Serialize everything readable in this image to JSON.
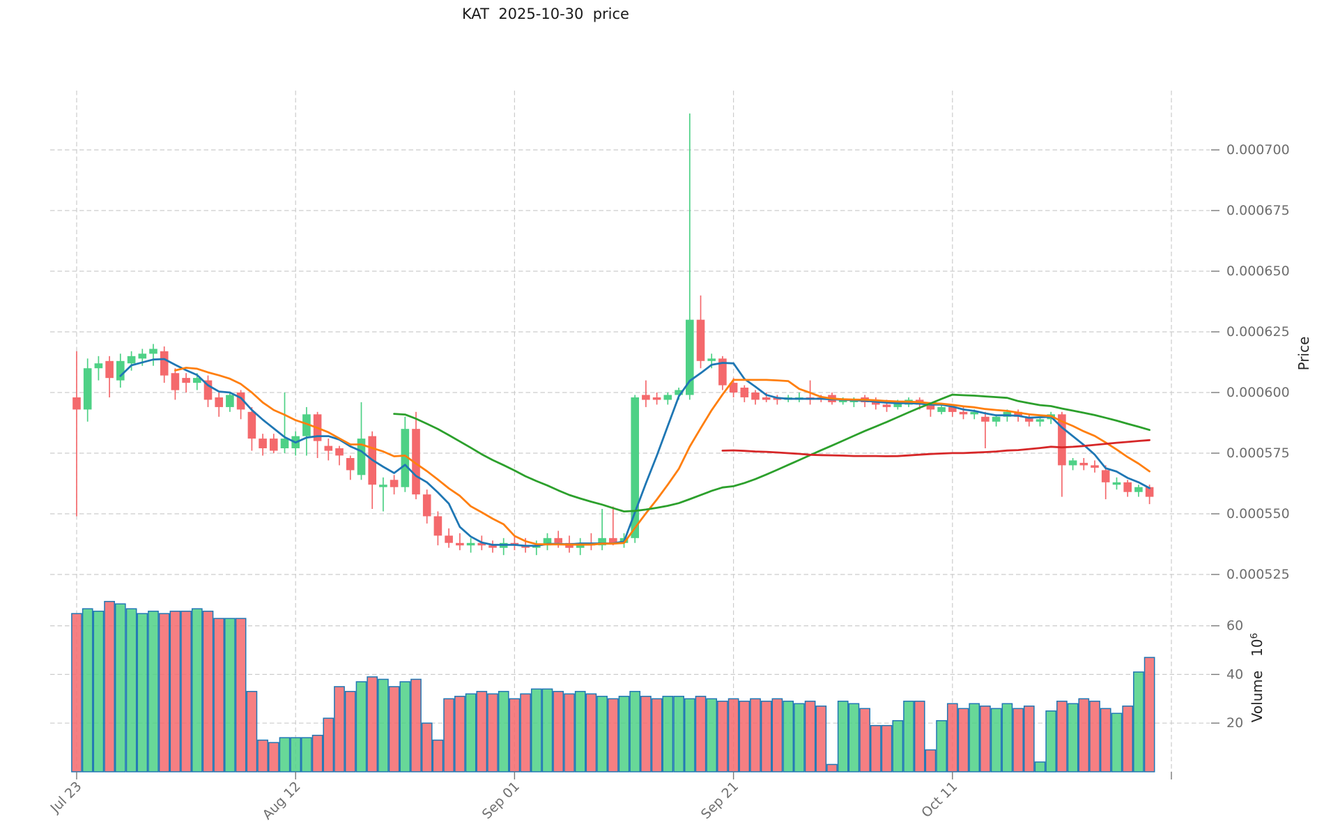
{
  "title": "KAT  2025-10-30  price",
  "axes": {
    "price_label": "Price",
    "volume_label": "Volume",
    "volume_scale_base": "10",
    "volume_scale_exp": "6",
    "price_ticks": [
      {
        "label": "0.000700",
        "value": 700
      },
      {
        "label": "0.000675",
        "value": 675
      },
      {
        "label": "0.000650",
        "value": 650
      },
      {
        "label": "0.000625",
        "value": 625
      },
      {
        "label": "0.000600",
        "value": 600
      },
      {
        "label": "0.000575",
        "value": 575
      },
      {
        "label": "0.000550",
        "value": 550
      },
      {
        "label": "0.000525",
        "value": 525
      }
    ],
    "volume_ticks": [
      {
        "label": "60",
        "value": 60
      },
      {
        "label": "40",
        "value": 40
      },
      {
        "label": "20",
        "value": 20
      }
    ],
    "date_ticks": [
      {
        "label": "Jul 23",
        "day": 0
      },
      {
        "label": "Aug 12",
        "day": 20
      },
      {
        "label": "Sep 01",
        "day": 40
      },
      {
        "label": "Sep 21",
        "day": 60
      },
      {
        "label": "Oct 11",
        "day": 80
      },
      {
        "label": "",
        "day": 100
      }
    ]
  },
  "colors": {
    "up": "#4ed186",
    "down": "#f4696c",
    "volume_edge": "#2077b4",
    "grid": "#cccccc",
    "tick_text": "#6e6e6e",
    "label_text": "#262626",
    "background": "#ffffff"
  },
  "chart_data": {
    "type": "candlestick+volume",
    "title": "KAT  2025-10-30  price",
    "start_date": "2025-07-23",
    "price_unit": "1e-6",
    "volume_unit": "1e6",
    "ylim_price": [
      520,
      720
    ],
    "ylim_volume": [
      0,
      72
    ],
    "grid": true,
    "legend": false,
    "ma_lines": [
      {
        "name": "SMA5",
        "period": 5,
        "color": "#1f77b4"
      },
      {
        "name": "SMA10",
        "period": 10,
        "color": "#ff7f0e"
      },
      {
        "name": "SMA30",
        "period": 30,
        "color": "#2ca02c"
      },
      {
        "name": "SMA60",
        "period": 60,
        "color": "#d62728"
      }
    ],
    "ohlcv_columns": [
      "open",
      "high",
      "low",
      "close",
      "volume"
    ],
    "ohlcv": [
      [
        598,
        617,
        549,
        593,
        65
      ],
      [
        593,
        614,
        588,
        610,
        67
      ],
      [
        610,
        615,
        605,
        612,
        66
      ],
      [
        613,
        615,
        598,
        606,
        70
      ],
      [
        605,
        616,
        602,
        613,
        69
      ],
      [
        612,
        617,
        609,
        615,
        67
      ],
      [
        614,
        618,
        611,
        616,
        65
      ],
      [
        616,
        620,
        611,
        618,
        66
      ],
      [
        617,
        619,
        604,
        607,
        65
      ],
      [
        608,
        610,
        597,
        601,
        66
      ],
      [
        606,
        608,
        600,
        604,
        66
      ],
      [
        604,
        608,
        601,
        606,
        67
      ],
      [
        605,
        607,
        594,
        597,
        66
      ],
      [
        598,
        600,
        590,
        594,
        63
      ],
      [
        594,
        600,
        592,
        599,
        63
      ],
      [
        600,
        601,
        589,
        593,
        63
      ],
      [
        592,
        594,
        576,
        581,
        33
      ],
      [
        581,
        583,
        574,
        577,
        13
      ],
      [
        581,
        583,
        575,
        576,
        12
      ],
      [
        577,
        600,
        575,
        581,
        14
      ],
      [
        577,
        584,
        574,
        582,
        14
      ],
      [
        582,
        594,
        574,
        591,
        14
      ],
      [
        591,
        592,
        573,
        580,
        15
      ],
      [
        578,
        581,
        572,
        576,
        22
      ],
      [
        577,
        578,
        570,
        574,
        35
      ],
      [
        573,
        574,
        564,
        568,
        33
      ],
      [
        566,
        596,
        564,
        581,
        37
      ],
      [
        582,
        584,
        552,
        562,
        39
      ],
      [
        561,
        565,
        551,
        562,
        38
      ],
      [
        564,
        566,
        558,
        561,
        35
      ],
      [
        561,
        590,
        559,
        585,
        37
      ],
      [
        585,
        592,
        556,
        558,
        38
      ],
      [
        558,
        560,
        546,
        549,
        20
      ],
      [
        549,
        551,
        537,
        541,
        13
      ],
      [
        541,
        544,
        536,
        538,
        30
      ],
      [
        538,
        542,
        535,
        537,
        31
      ],
      [
        537,
        540,
        534,
        538,
        32
      ],
      [
        538,
        541,
        535,
        537,
        33
      ],
      [
        537,
        539,
        534,
        536,
        32
      ],
      [
        536,
        540,
        533,
        538,
        33
      ],
      [
        538,
        541,
        535,
        537,
        30
      ],
      [
        537,
        540,
        534,
        536,
        32
      ],
      [
        536,
        539,
        533,
        537,
        34
      ],
      [
        537,
        542,
        535,
        540,
        34
      ],
      [
        540,
        543,
        536,
        538,
        33
      ],
      [
        538,
        541,
        534,
        536,
        32
      ],
      [
        536,
        540,
        533,
        538,
        33
      ],
      [
        538,
        542,
        535,
        537,
        32
      ],
      [
        537,
        552,
        535,
        540,
        31
      ],
      [
        540,
        553,
        537,
        538,
        30
      ],
      [
        538,
        542,
        536,
        540,
        31
      ],
      [
        540,
        599,
        538,
        598,
        33
      ],
      [
        599,
        605,
        594,
        597,
        31
      ],
      [
        598,
        600,
        595,
        597,
        30
      ],
      [
        597,
        600,
        595,
        599,
        31
      ],
      [
        599,
        602,
        597,
        601,
        31
      ],
      [
        599,
        715,
        597,
        630,
        30
      ],
      [
        630,
        640,
        610,
        613,
        31
      ],
      [
        613,
        616,
        610,
        614,
        30
      ],
      [
        614,
        615,
        601,
        603,
        29
      ],
      [
        604,
        606,
        598,
        600,
        30
      ],
      [
        602,
        603,
        596,
        598,
        29
      ],
      [
        600,
        601,
        595,
        597,
        30
      ],
      [
        598,
        600,
        596,
        597,
        29
      ],
      [
        598,
        599,
        595,
        597,
        30
      ],
      [
        597,
        599,
        596,
        598,
        29
      ],
      [
        597,
        600,
        596,
        598,
        28
      ],
      [
        598,
        605,
        595,
        597,
        29
      ],
      [
        598,
        599,
        596,
        597,
        27
      ],
      [
        599,
        600,
        595,
        596,
        3
      ],
      [
        596,
        598,
        595,
        597,
        29
      ],
      [
        596,
        598,
        594,
        597,
        28
      ],
      [
        598,
        599,
        594,
        596,
        26
      ],
      [
        597,
        598,
        593,
        595,
        19
      ],
      [
        595,
        597,
        592,
        594,
        19
      ],
      [
        594,
        597,
        593,
        596,
        21
      ],
      [
        595,
        598,
        594,
        597,
        29
      ],
      [
        597,
        598,
        593,
        595,
        29
      ],
      [
        595,
        596,
        590,
        593,
        9
      ],
      [
        592,
        595,
        591,
        594,
        21
      ],
      [
        594,
        595,
        590,
        592,
        28
      ],
      [
        592,
        594,
        589,
        591,
        26
      ],
      [
        591,
        593,
        589,
        592,
        28
      ],
      [
        590,
        592,
        577,
        588,
        27
      ],
      [
        588,
        591,
        586,
        590,
        26
      ],
      [
        590,
        593,
        588,
        592,
        28
      ],
      [
        592,
        593,
        588,
        590,
        26
      ],
      [
        590,
        591,
        586,
        588,
        27
      ],
      [
        588,
        590,
        586,
        589,
        4
      ],
      [
        589,
        592,
        587,
        591,
        25
      ],
      [
        591,
        592,
        557,
        570,
        29
      ],
      [
        570,
        573,
        568,
        572,
        28
      ],
      [
        571,
        573,
        568,
        570,
        30
      ],
      [
        570,
        572,
        567,
        569,
        29
      ],
      [
        568,
        570,
        556,
        563,
        26
      ],
      [
        562,
        565,
        560,
        563,
        24
      ],
      [
        563,
        564,
        557,
        559,
        27
      ],
      [
        559,
        562,
        557,
        561,
        41
      ],
      [
        561,
        562,
        554,
        557,
        47
      ]
    ]
  }
}
